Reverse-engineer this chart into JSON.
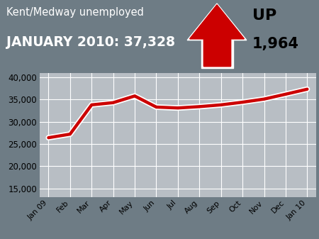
{
  "title_line1": "Kent/Medway unemployed",
  "title_line2": "JANUARY 2010: 37,328",
  "up_label": "UP",
  "up_value": "1,964",
  "x_labels": [
    "Jan 09",
    "Feb",
    "Mar",
    "Apr",
    "May",
    "Jun",
    "Jul",
    "Aug",
    "Sep",
    "Oct",
    "Nov",
    "Dec",
    "Jan 10"
  ],
  "y_values": [
    26400,
    27200,
    33800,
    34300,
    35800,
    33300,
    33100,
    33400,
    33800,
    34400,
    35100,
    36200,
    37328
  ],
  "ylim_min": 13000,
  "ylim_max": 41000,
  "yticks": [
    15000,
    20000,
    25000,
    30000,
    35000,
    40000
  ],
  "line_color": "#cc0000",
  "line_width": 3.2,
  "bg_color": "#b8bec4",
  "header_bg": "#6e7c85",
  "grid_color": "#d0d5d8",
  "arrow_color": "#cc0000",
  "text_color_white": "#ffffff",
  "text_color_black": "#000000",
  "title1_fontsize": 10.5,
  "title2_fontsize": 13.5,
  "up_fontsize": 16,
  "upval_fontsize": 15
}
